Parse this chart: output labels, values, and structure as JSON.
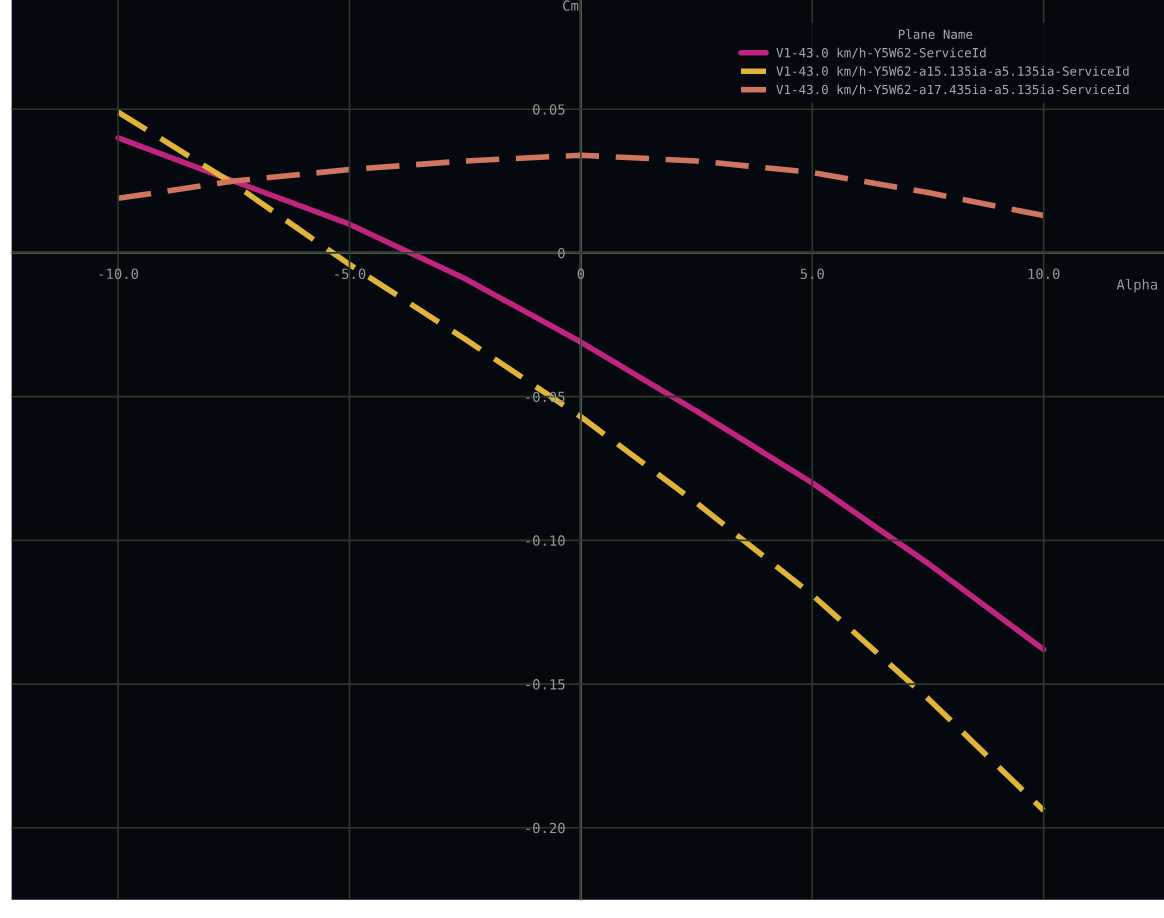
{
  "chart_data": {
    "type": "line",
    "xlabel": "Alpha",
    "ylabel": "Cm",
    "legend_title": "Plane Name",
    "x": [
      -10,
      -7.5,
      -5,
      -2.5,
      0,
      2.5,
      5,
      7.5,
      10
    ],
    "series": [
      {
        "name": "V1-43.0 km/h-Y5W62-ServiceId",
        "color": "#c0247e",
        "line_style": "solid",
        "values": [
          0.04,
          0.025,
          0.01,
          -0.009,
          -0.031,
          -0.055,
          -0.08,
          -0.108,
          -0.138
        ]
      },
      {
        "name": "V1-43.0 km/h-Y5W62-a15.135ia-a5.135ia-ServiceId",
        "color": "#e0b43a",
        "line_style": "dashed",
        "values": [
          0.049,
          0.024,
          -0.004,
          -0.03,
          -0.057,
          -0.087,
          -0.119,
          -0.155,
          -0.194
        ]
      },
      {
        "name": "V1-43.0 km/h-Y5W62-a17.435ia-a5.135ia-ServiceId",
        "color": "#d07560",
        "line_style": "dashed",
        "values": [
          0.019,
          0.025,
          0.029,
          0.032,
          0.034,
          0.032,
          0.028,
          0.021,
          0.013
        ]
      }
    ],
    "xlim": [
      -12.3,
      12.6
    ],
    "ylim": [
      -0.225,
      0.088
    ],
    "xticks": [
      {
        "value": -10,
        "label": "-10.0"
      },
      {
        "value": -5,
        "label": "-5.0"
      },
      {
        "value": 0,
        "label": "0"
      },
      {
        "value": 5,
        "label": "5.0"
      },
      {
        "value": 10,
        "label": "10.0"
      }
    ],
    "yticks": [
      {
        "value": -0.2,
        "label": "-0.20"
      },
      {
        "value": -0.15,
        "label": "-0.15"
      },
      {
        "value": -0.1,
        "label": "-0.10"
      },
      {
        "value": -0.05,
        "label": "-0.05"
      },
      {
        "value": 0,
        "label": "0"
      },
      {
        "value": 0.05,
        "label": "0.05"
      }
    ],
    "grid": true,
    "legend": "top right"
  }
}
